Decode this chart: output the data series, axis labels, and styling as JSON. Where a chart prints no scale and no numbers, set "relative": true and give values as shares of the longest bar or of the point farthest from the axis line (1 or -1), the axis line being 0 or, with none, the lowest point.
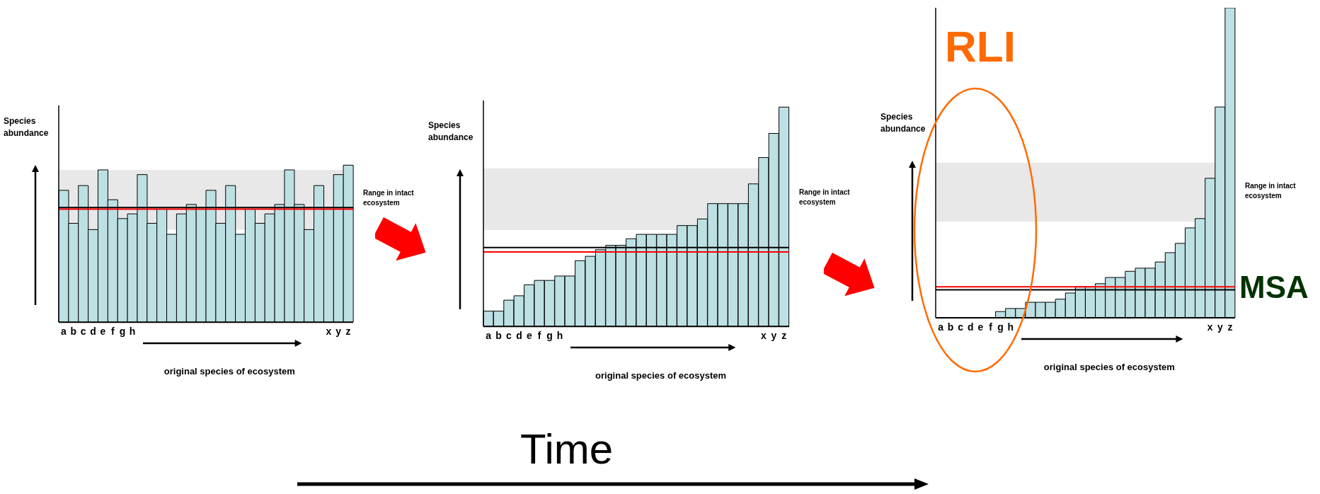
{
  "chart_data": [
    {
      "type": "bar",
      "relative": true,
      "xlabel": "original species of ecosystem",
      "ylabel": "Species abundance",
      "color": "#bde0e3",
      "categories": [
        "a",
        "b",
        "c",
        "d",
        "e",
        "f",
        "g",
        "h",
        null,
        null,
        null,
        null,
        null,
        null,
        null,
        null,
        null,
        null,
        null,
        null,
        null,
        null,
        null,
        null,
        null,
        null,
        null,
        "x",
        "y",
        "z"
      ],
      "values": [
        0.84,
        0.63,
        0.87,
        0.59,
        0.97,
        0.78,
        0.66,
        0.69,
        0.94,
        0.63,
        0.72,
        0.56,
        0.69,
        0.75,
        0.72,
        0.84,
        0.63,
        0.87,
        0.56,
        0.72,
        0.63,
        0.69,
        0.75,
        0.97,
        0.75,
        0.59,
        0.87,
        0.72,
        0.94,
        1
      ],
      "bands": [
        {
          "axis": "y",
          "from": 0.59,
          "to": 0.97,
          "label": "Range in intact ecosystem",
          "color": "#e8e8e8"
        }
      ],
      "ref_lines": [
        {
          "axis": "y",
          "value": 0.73,
          "color": "#000000"
        },
        {
          "axis": "y",
          "value": 0.72,
          "color": "#ff0000"
        }
      ]
    },
    {
      "type": "bar",
      "relative": true,
      "xlabel": "original species of ecosystem",
      "ylabel": "Species abundance",
      "color": "#bde0e3",
      "categories": [
        "a",
        "b",
        "c",
        "d",
        "e",
        "f",
        "g",
        "h",
        null,
        null,
        null,
        null,
        null,
        null,
        null,
        null,
        null,
        null,
        null,
        null,
        null,
        null,
        null,
        null,
        null,
        null,
        null,
        "x",
        "y",
        "z"
      ],
      "values": [
        0.07,
        0.07,
        0.12,
        0.14,
        0.19,
        0.21,
        0.21,
        0.23,
        0.23,
        0.3,
        0.32,
        0.35,
        0.37,
        0.37,
        0.4,
        0.42,
        0.42,
        0.42,
        0.42,
        0.46,
        0.46,
        0.49,
        0.56,
        0.56,
        0.56,
        0.56,
        0.65,
        0.77,
        0.88,
        1
      ],
      "bands": [
        {
          "axis": "y",
          "from": 0.44,
          "to": 0.72,
          "label": "Range in intact ecosystem",
          "color": "#e8e8e8"
        }
      ],
      "ref_lines": [
        {
          "axis": "y",
          "value": 0.36,
          "color": "#000000"
        },
        {
          "axis": "y",
          "value": 0.34,
          "color": "#ff0000"
        }
      ],
      "annotations": [
        "Time"
      ]
    },
    {
      "type": "bar",
      "relative": true,
      "xlabel": "original species of ecosystem",
      "ylabel": "Species abundance",
      "color": "#bde0e3",
      "categories": [
        "a",
        "b",
        "c",
        "d",
        "e",
        "f",
        "g",
        "h",
        null,
        null,
        null,
        null,
        null,
        null,
        null,
        null,
        null,
        null,
        null,
        null,
        null,
        null,
        null,
        null,
        null,
        null,
        null,
        "x",
        "y",
        "z"
      ],
      "values": [
        0,
        0,
        0,
        0,
        0,
        0,
        0.02,
        0.03,
        0.03,
        0.05,
        0.05,
        0.05,
        0.06,
        0.08,
        0.1,
        0.1,
        0.11,
        0.13,
        0.13,
        0.15,
        0.16,
        0.16,
        0.18,
        0.21,
        0.24,
        0.29,
        0.32,
        0.45,
        0.68,
        1
      ],
      "bands": [
        {
          "axis": "y",
          "from": 0.31,
          "to": 0.5,
          "label": "Range in intact ecosystem",
          "color": "#e8e8e8"
        }
      ],
      "ref_lines": [
        {
          "axis": "y",
          "value": 0.09,
          "color": "#000000"
        },
        {
          "axis": "y",
          "value": 0.1,
          "color": "#ff0000",
          "label": "MSA"
        }
      ],
      "annotations": [
        "RLI"
      ]
    }
  ]
}
